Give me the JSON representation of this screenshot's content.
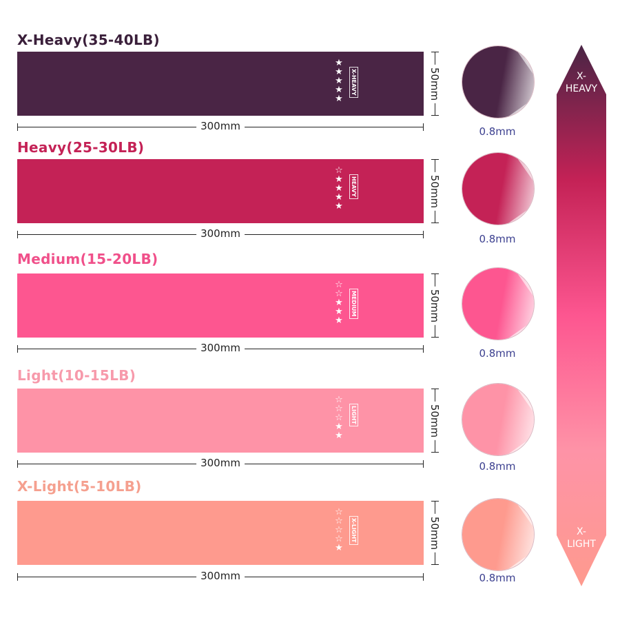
{
  "bands": [
    {
      "title": "X-Heavy(35-40LB)",
      "tag": "X-HEAVY",
      "stars_filled": 5,
      "stars_total": 5,
      "color": "#4a2545",
      "title_color": "#3a1f3a",
      "width_label": "300mm",
      "height_label": "50mm",
      "thickness": "0.8mm"
    },
    {
      "title": "Heavy(25-30LB)",
      "tag": "HEAVY",
      "stars_filled": 4,
      "stars_total": 5,
      "color": "#c42256",
      "title_color": "#c42256",
      "width_label": "300mm",
      "height_label": "50mm",
      "thickness": "0.8mm"
    },
    {
      "title": "Medium(15-20LB)",
      "tag": "MEDIUM",
      "stars_filled": 3,
      "stars_total": 5,
      "color": "#fd5690",
      "title_color": "#f0508a",
      "width_label": "300mm",
      "height_label": "50mm",
      "thickness": "0.8mm"
    },
    {
      "title": "Light(10-15LB)",
      "tag": "LIGHT",
      "stars_filled": 2,
      "stars_total": 5,
      "color": "#fe93a7",
      "title_color": "#f79aab",
      "width_label": "300mm",
      "height_label": "50mm",
      "thickness": "0.8mm"
    },
    {
      "title": "X-Light(5-10LB)",
      "tag": "X-LIGHT",
      "stars_filled": 1,
      "stars_total": 5,
      "color": "#fe9a8e",
      "title_color": "#f5a08f",
      "width_label": "300mm",
      "height_label": "50mm",
      "thickness": "0.8mm"
    }
  ],
  "scale_arrow": {
    "top_label": "X-\nHEAVY",
    "bottom_label": "X-\nLIGHT",
    "colors": [
      "#4a2545",
      "#c42256",
      "#fd5690",
      "#fe93a7",
      "#fe9a8e"
    ]
  }
}
